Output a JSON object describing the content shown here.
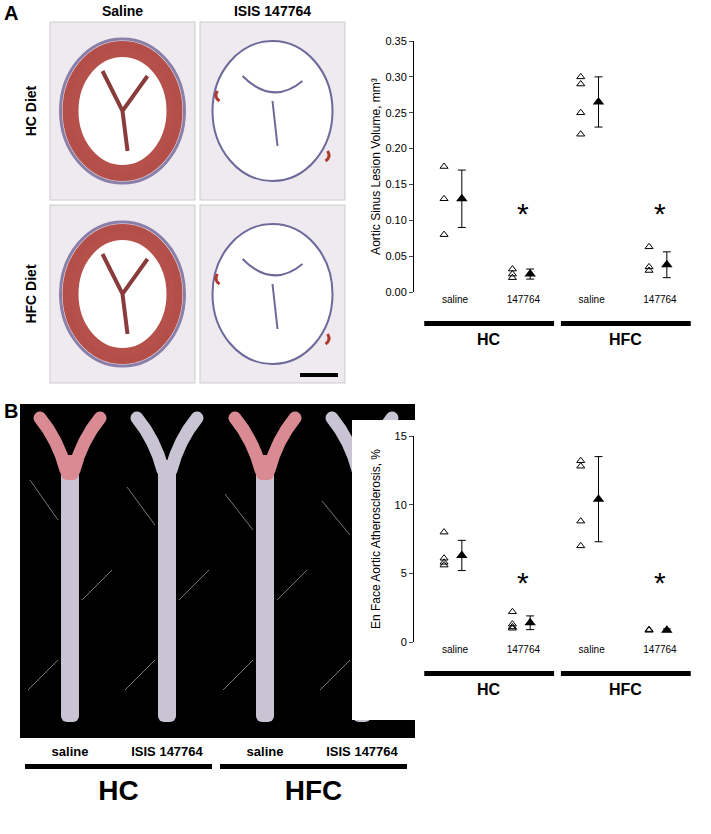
{
  "images": {
    "panel_A": {
      "label": "A",
      "columns": [
        "Saline",
        "ISIS 147764"
      ],
      "rows": [
        "HC Diet",
        "HFC Diet"
      ]
    },
    "panel_B": {
      "label": "B",
      "columns": [
        "saline",
        "ISIS 147764",
        "saline",
        "ISIS 147764"
      ],
      "groups": [
        "HC",
        "HC",
        "HFC",
        "HFC"
      ]
    }
  },
  "chart_data": [
    {
      "type": "scatter",
      "marker": "triangle-up",
      "y_label": "Aortic Sinus Lesion Volume, mm³",
      "categories": [
        "saline",
        "147764",
        "saline",
        "147764"
      ],
      "groups": [
        "HC",
        "HC",
        "HFC",
        "HFC"
      ],
      "points": [
        [
          0.175,
          0.13,
          0.08
        ],
        [
          0.032,
          0.025,
          0.02
        ],
        [
          0.3,
          0.29,
          0.25,
          0.22
        ],
        [
          0.063,
          0.035,
          0.03
        ]
      ],
      "means": [
        0.13,
        0.025,
        0.265,
        0.038
      ],
      "errors": [
        0.04,
        0.007,
        0.035,
        0.018
      ],
      "marks": [
        null,
        "*",
        null,
        "*"
      ],
      "mark_y": [
        null,
        0.11,
        null,
        0.11
      ],
      "ylim": [
        0,
        0.35
      ],
      "yticks": [
        {
          "value": 0,
          "label": "0.00"
        },
        0.05,
        {
          "value": 0.1,
          "label": "0.10"
        },
        0.15,
        {
          "value": 0.2,
          "label": "0.20"
        },
        0.25,
        {
          "value": 0.3,
          "label": "0.30"
        },
        0.35
      ],
      "grid": false
    },
    {
      "type": "scatter",
      "marker": "triangle-up",
      "y_label": "En Face Aortic Atherosclerosis, %",
      "categories": [
        "saline",
        "147764",
        "saline",
        "147764"
      ],
      "groups": [
        "HC",
        "HC",
        "HFC",
        "HFC"
      ],
      "points": [
        [
          8.0,
          6.1,
          5.8,
          5.6
        ],
        [
          2.2,
          1.3,
          1.1,
          1.0
        ],
        [
          13.2,
          12.8,
          8.8,
          7.0
        ],
        [
          0.9,
          0.85
        ]
      ],
      "means": [
        6.3,
        1.4,
        10.4,
        0.85
      ],
      "errors": [
        1.1,
        0.5,
        3.1,
        0.1
      ],
      "marks": [
        null,
        "*",
        null,
        "*"
      ],
      "mark_y": [
        null,
        4.3,
        null,
        4.3
      ],
      "ylim": [
        0,
        15
      ],
      "yticks": [
        0,
        5,
        10,
        15
      ],
      "grid": false
    }
  ]
}
